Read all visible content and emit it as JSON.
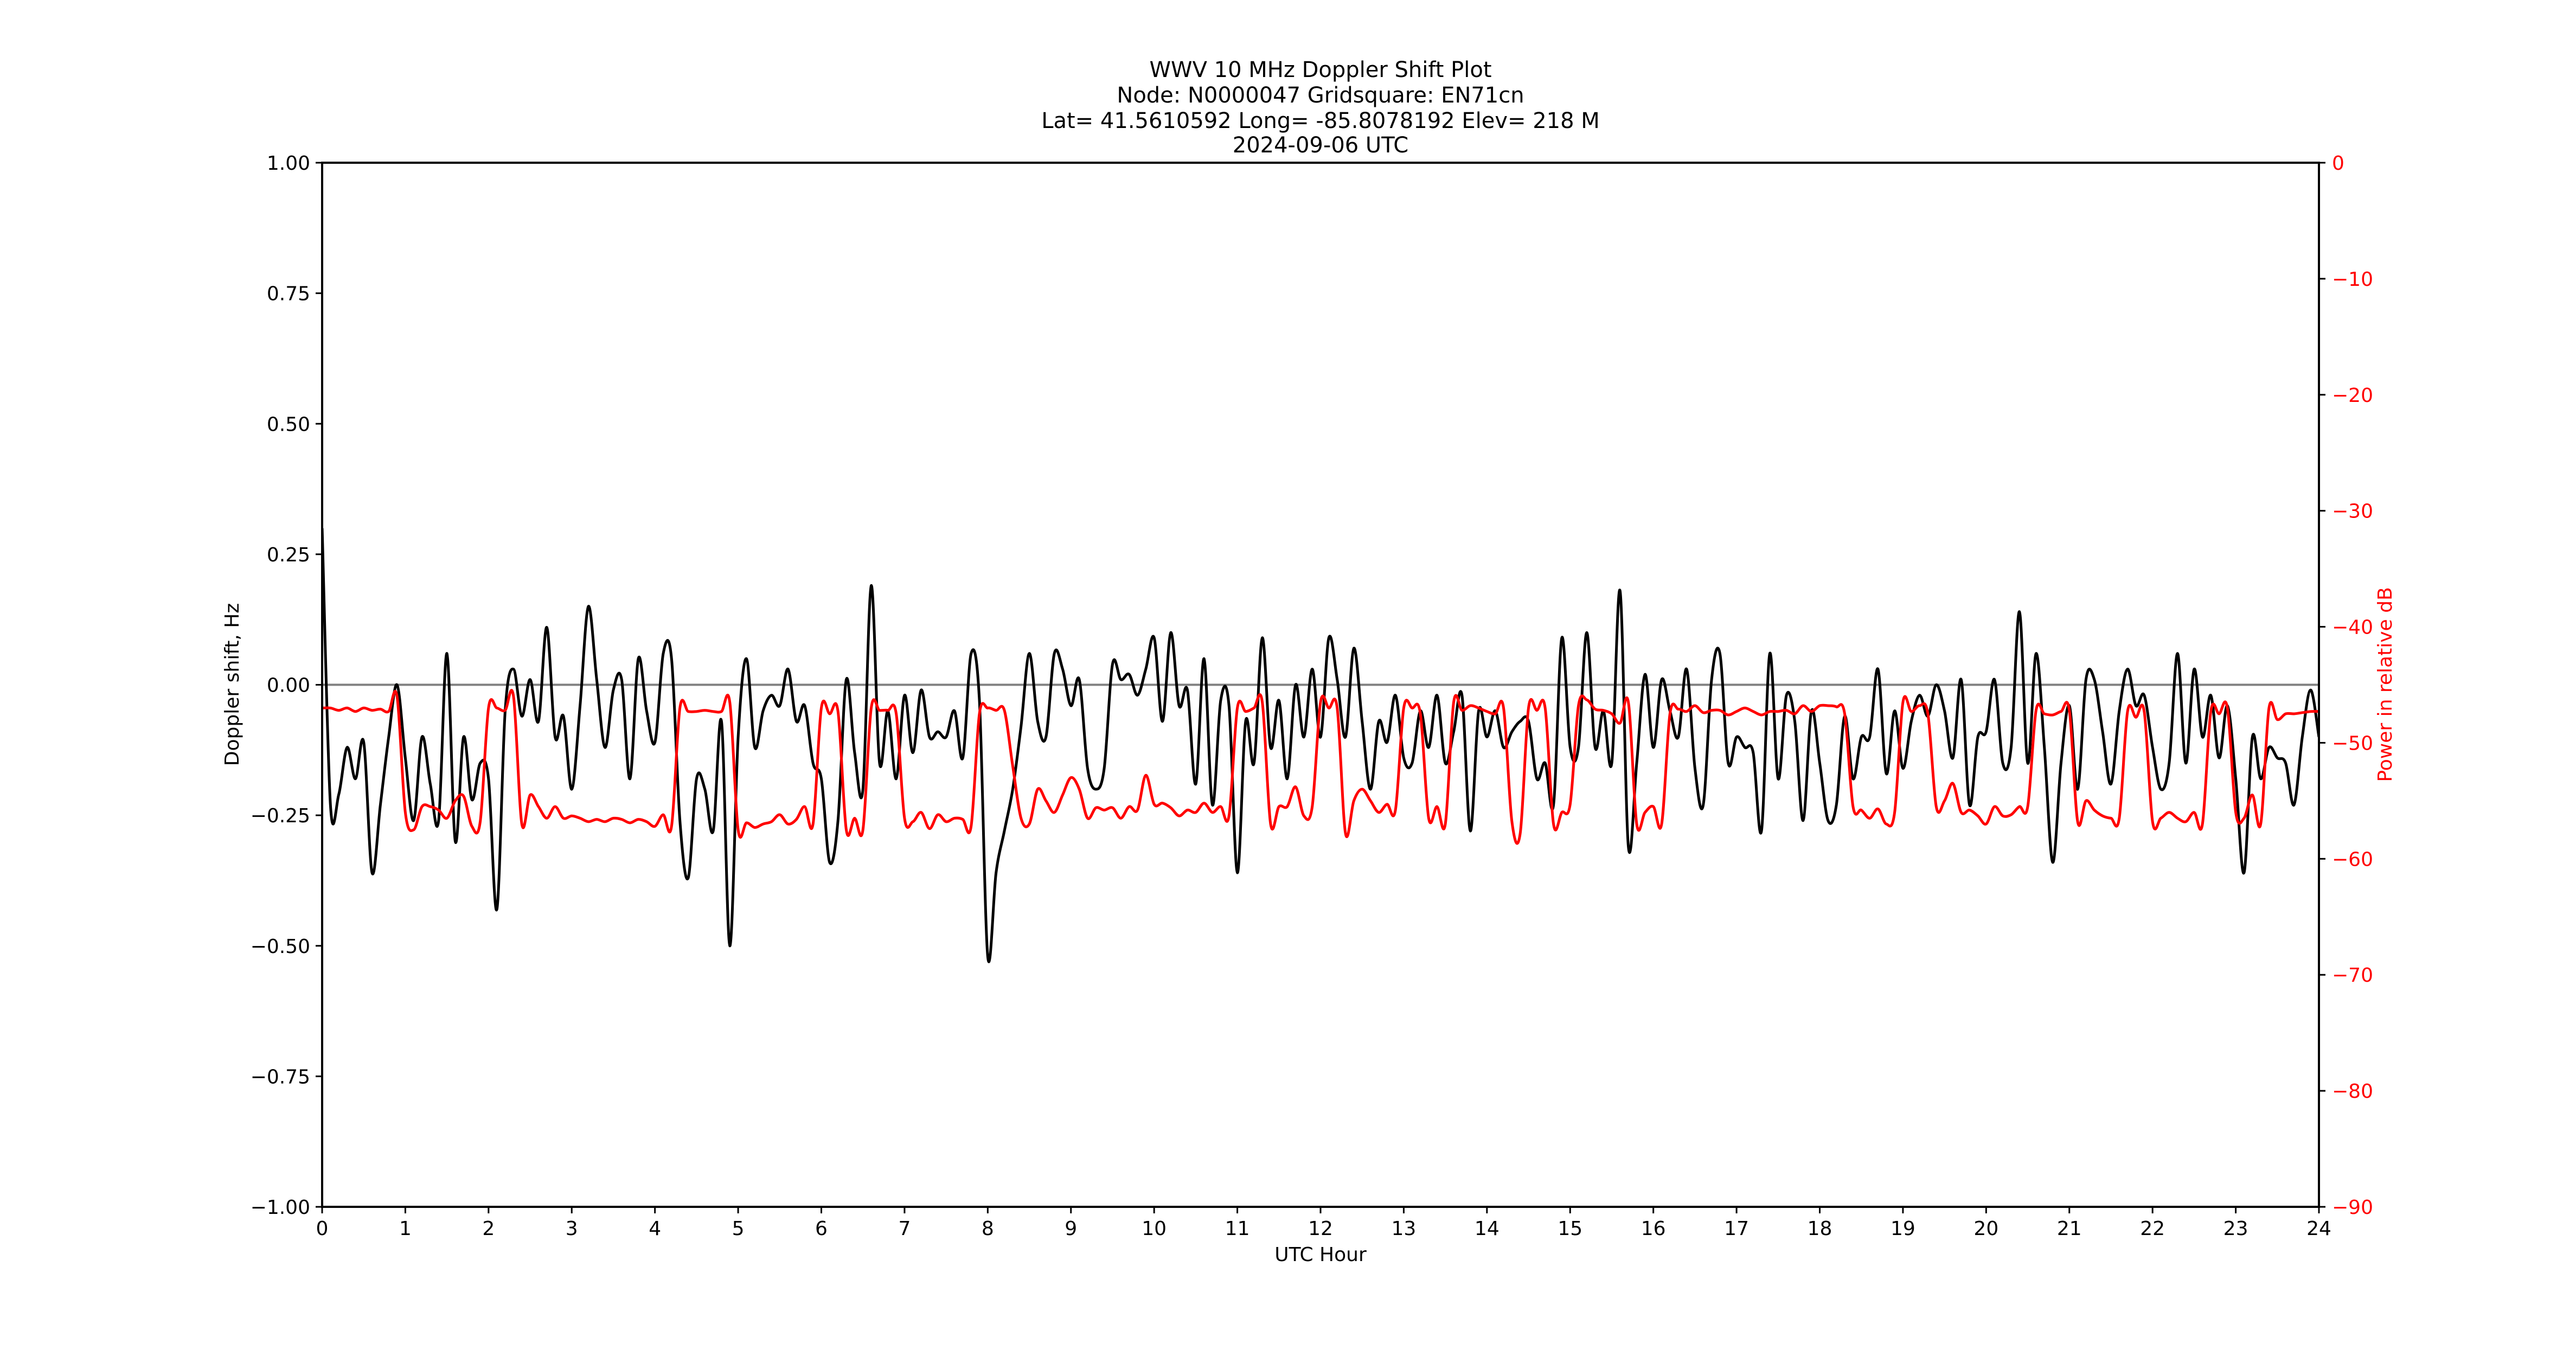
{
  "chart_data": {
    "type": "line",
    "title_lines": [
      "WWV 10 MHz Doppler Shift Plot",
      "Node:  N0000047     Gridsquare:  EN71cn",
      "Lat= 41.5610592    Long= -85.8078192    Elev= 218 M",
      "2024-09-06  UTC"
    ],
    "xlabel": "UTC Hour",
    "ylabel": "Doppler shift, Hz",
    "y2label": "Power in relative dB",
    "xlim": [
      0,
      24
    ],
    "ylim": [
      -1,
      1
    ],
    "y2lim": [
      -90,
      0
    ],
    "grid": false,
    "x_ticks": [
      "0",
      "1",
      "2",
      "3",
      "4",
      "5",
      "6",
      "7",
      "8",
      "9",
      "10",
      "11",
      "12",
      "13",
      "14",
      "15",
      "16",
      "17",
      "18",
      "19",
      "20",
      "21",
      "22",
      "23",
      "24"
    ],
    "y_ticks": [
      "1.00",
      "0.75",
      "0.50",
      "0.25",
      "0.00",
      "−0.25",
      "−0.50",
      "−0.75",
      "−1.00"
    ],
    "y_tick_values": [
      1,
      0.75,
      0.5,
      0.25,
      0,
      -0.25,
      -0.5,
      -0.75,
      -1
    ],
    "y2_ticks": [
      "0",
      "−10",
      "−20",
      "−30",
      "−40",
      "−50",
      "−60",
      "−70",
      "−80",
      "−90"
    ],
    "y2_tick_values": [
      0,
      -10,
      -20,
      -30,
      -40,
      -50,
      -60,
      -70,
      -80,
      -90
    ],
    "reference_line": {
      "y": 0,
      "color": "#808080"
    },
    "colors": {
      "doppler": "#000000",
      "power": "#ff0000",
      "y2_axis": "#ff0000"
    },
    "series": [
      {
        "axis": "left",
        "color": "#000000",
        "values": [
          0.3,
          -0.23,
          -0.21,
          -0.12,
          -0.18,
          -0.11,
          -0.36,
          -0.23,
          -0.1,
          0.0,
          -0.14,
          -0.26,
          -0.1,
          -0.19,
          -0.26,
          0.06,
          -0.3,
          -0.1,
          -0.22,
          -0.15,
          -0.18,
          -0.43,
          -0.05,
          0.03,
          -0.06,
          0.01,
          -0.07,
          0.11,
          -0.1,
          -0.06,
          -0.2,
          -0.04,
          0.15,
          0.01,
          -0.12,
          -0.01,
          0.01,
          -0.18,
          0.05,
          -0.05,
          -0.11,
          0.06,
          0.05,
          -0.26,
          -0.37,
          -0.18,
          -0.2,
          -0.28,
          -0.07,
          -0.5,
          -0.1,
          0.05,
          -0.12,
          -0.05,
          -0.02,
          -0.04,
          0.03,
          -0.07,
          -0.04,
          -0.15,
          -0.18,
          -0.34,
          -0.26,
          0.01,
          -0.13,
          -0.2,
          0.19,
          -0.15,
          -0.05,
          -0.18,
          -0.02,
          -0.13,
          -0.01,
          -0.1,
          -0.09,
          -0.1,
          -0.05,
          -0.14,
          0.06,
          -0.03,
          -0.52,
          -0.36,
          -0.28,
          -0.2,
          -0.08,
          0.06,
          -0.07,
          -0.1,
          0.06,
          0.03,
          -0.04,
          0.01,
          -0.16,
          -0.2,
          -0.16,
          0.04,
          0.01,
          0.02,
          -0.02,
          0.03,
          0.09,
          -0.07,
          0.1,
          -0.04,
          -0.01,
          -0.19,
          0.05,
          -0.23,
          -0.03,
          -0.04,
          -0.36,
          -0.07,
          -0.15,
          0.09,
          -0.12,
          -0.03,
          -0.18,
          0.0,
          -0.1,
          0.03,
          -0.1,
          0.09,
          0.01,
          -0.1,
          0.07,
          -0.07,
          -0.2,
          -0.07,
          -0.11,
          -0.02,
          -0.14,
          -0.15,
          -0.05,
          -0.12,
          -0.02,
          -0.15,
          -0.09,
          -0.02,
          -0.28,
          -0.05,
          -0.1,
          -0.05,
          -0.12,
          -0.09,
          -0.07,
          -0.07,
          -0.18,
          -0.15,
          -0.23,
          0.09,
          -0.12,
          -0.12,
          0.1,
          -0.12,
          -0.05,
          -0.15,
          0.18,
          -0.31,
          -0.15,
          0.02,
          -0.12,
          0.01,
          -0.05,
          -0.1,
          0.03,
          -0.16,
          -0.23,
          0.01,
          0.06,
          -0.15,
          -0.1,
          -0.12,
          -0.13,
          -0.28,
          0.06,
          -0.18,
          -0.02,
          -0.07,
          -0.26,
          -0.05,
          -0.15,
          -0.26,
          -0.23,
          -0.06,
          -0.18,
          -0.1,
          -0.1,
          0.03,
          -0.17,
          -0.05,
          -0.16,
          -0.07,
          -0.02,
          -0.06,
          0.0,
          -0.05,
          -0.14,
          0.01,
          -0.23,
          -0.1,
          -0.09,
          0.01,
          -0.15,
          -0.12,
          0.14,
          -0.15,
          0.06,
          -0.12,
          -0.34,
          -0.15,
          -0.04,
          -0.2,
          0.01,
          0.01,
          -0.09,
          -0.19,
          -0.05,
          0.03,
          -0.04,
          -0.02,
          -0.12,
          -0.2,
          -0.15,
          0.06,
          -0.15,
          0.03,
          -0.1,
          -0.02,
          -0.14,
          -0.04,
          -0.18,
          -0.36,
          -0.1,
          -0.18,
          -0.12,
          -0.14,
          -0.15,
          -0.23,
          -0.1,
          -0.01,
          -0.1
        ]
      },
      {
        "axis": "right",
        "color": "#ff0000",
        "values": [
          -47,
          -47,
          -47.2,
          -47,
          -47.3,
          -47,
          -47.2,
          -47.1,
          -47.3,
          -46,
          -56,
          -57.5,
          -55.5,
          -55.5,
          -55.8,
          -56.5,
          -55,
          -54.6,
          -57.2,
          -56.8,
          -47,
          -47,
          -47.2,
          -46,
          -57,
          -54.5,
          -55.5,
          -56.5,
          -55.5,
          -56.5,
          -56.3,
          -56.5,
          -56.8,
          -56.6,
          -56.8,
          -56.5,
          -56.6,
          -56.9,
          -56.6,
          -56.8,
          -57.2,
          -56.2,
          -57.2,
          -47,
          -47.3,
          -47.3,
          -47.2,
          -47.3,
          -47.3,
          -46.5,
          -57.5,
          -56.9,
          -57.3,
          -57,
          -56.8,
          -56.2,
          -57,
          -56.6,
          -55.5,
          -57,
          -47,
          -47.5,
          -47.3,
          -57.5,
          -56.5,
          -57.5,
          -47,
          -47.2,
          -47.2,
          -47.5,
          -56.5,
          -56.8,
          -56,
          -57.4,
          -56.2,
          -56.8,
          -56.5,
          -56.6,
          -57.2,
          -47.5,
          -47,
          -47.2,
          -47.2,
          -52,
          -56.5,
          -57,
          -54,
          -55,
          -56,
          -54.5,
          -53,
          -54,
          -56.5,
          -55.6,
          -55.8,
          -55.6,
          -56.5,
          -55.5,
          -55.8,
          -52.8,
          -55.3,
          -55.2,
          -55.6,
          -56.3,
          -55.8,
          -56,
          -55.2,
          -56,
          -55.5,
          -56.3,
          -47,
          -47.3,
          -47,
          -46.5,
          -57,
          -55.5,
          -55.5,
          -53.8,
          -56.3,
          -55.5,
          -46.5,
          -47,
          -47,
          -57.8,
          -55,
          -54,
          -55,
          -56,
          -55.3,
          -55.8,
          -47,
          -47,
          -47.5,
          -56.5,
          -55.5,
          -57,
          -46.5,
          -47.2,
          -46.8,
          -47,
          -47.3,
          -47.5,
          -47,
          -56.8,
          -57.8,
          -47,
          -47.2,
          -47,
          -57,
          -56,
          -55.3,
          -46.8,
          -46.3,
          -47.1,
          -47.2,
          -47.5,
          -48.3,
          -46.5,
          -57,
          -56,
          -55.5,
          -57,
          -47.5,
          -47.1,
          -47.3,
          -46.8,
          -47.4,
          -47.2,
          -47.2,
          -47.6,
          -47.3,
          -47,
          -47.3,
          -47.6,
          -47.3,
          -47.3,
          -47.2,
          -47.5,
          -46.8,
          -47.3,
          -46.8,
          -46.8,
          -46.9,
          -47.5,
          -55.5,
          -55.8,
          -56.5,
          -55.7,
          -57,
          -56,
          -46.5,
          -47.3,
          -46.8,
          -47.5,
          -55.5,
          -55,
          -53.5,
          -56,
          -55.8,
          -56.3,
          -57,
          -55.5,
          -56.3,
          -56.2,
          -55.5,
          -55.5,
          -47.2,
          -47.5,
          -47.6,
          -47.3,
          -47.2,
          -56.8,
          -55,
          -55.8,
          -56.3,
          -56.5,
          -56.5,
          -47.3,
          -47.8,
          -47.3,
          -56.8,
          -56.5,
          -56,
          -56.5,
          -56.8,
          -56,
          -57,
          -47.3,
          -47.5,
          -47,
          -56,
          -56.5,
          -54.5,
          -57,
          -47,
          -48,
          -47.5,
          -47.5,
          -47.4,
          -47.3,
          -47.3
        ]
      }
    ]
  }
}
